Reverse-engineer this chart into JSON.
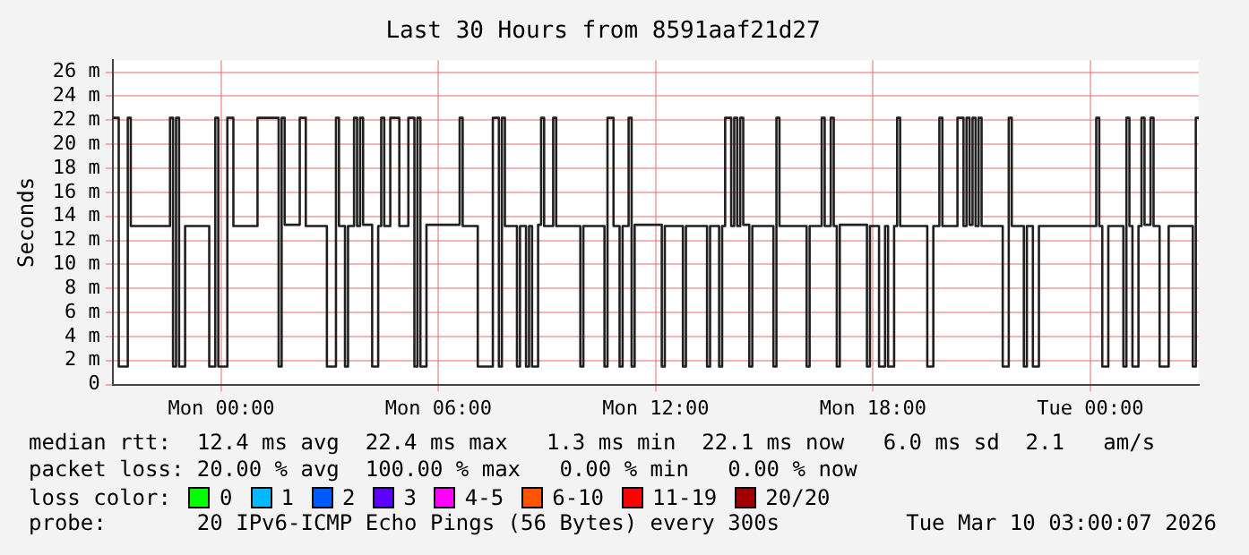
{
  "chart_data": {
    "type": "step",
    "title": "Last 30 Hours from 8591aaf21d27",
    "ylabel": "Seconds",
    "xlim": [
      "2026-03-08T21:00",
      "2026-03-10T03:00"
    ],
    "xticks": [
      {
        "value": "2026-03-09T00:00",
        "label": "Mon 00:00"
      },
      {
        "value": "2026-03-09T06:00",
        "label": "Mon 06:00"
      },
      {
        "value": "2026-03-09T12:00",
        "label": "Mon 12:00"
      },
      {
        "value": "2026-03-09T18:00",
        "label": "Mon 18:00"
      },
      {
        "value": "2026-03-10T00:00",
        "label": "Tue 00:00"
      }
    ],
    "ylim": [
      0,
      27
    ],
    "yticks": [
      0,
      {
        "value": 2,
        "label": "2 m"
      },
      {
        "value": 4,
        "label": "4 m"
      },
      {
        "value": 6,
        "label": "6 m"
      },
      {
        "value": 8,
        "label": "8 m"
      },
      {
        "value": 10,
        "label": "10 m"
      },
      {
        "value": 12,
        "label": "12 m"
      },
      {
        "value": 14,
        "label": "14 m"
      },
      {
        "value": 16,
        "label": "16 m"
      },
      {
        "value": 18,
        "label": "18 m"
      },
      {
        "value": 20,
        "label": "20 m"
      },
      {
        "value": 22,
        "label": "22 m"
      },
      {
        "value": 24,
        "label": "24 m"
      },
      {
        "value": 26,
        "label": "26 m"
      }
    ],
    "grid": true,
    "series": [
      {
        "color": "#202020",
        "x": [
          "2026-03-08T21:00",
          "2026-03-08T21:10",
          "2026-03-08T21:25",
          "2026-03-08T21:30",
          "2026-03-08T22:35",
          "2026-03-08T22:40",
          "2026-03-08T22:45",
          "2026-03-08T22:50",
          "2026-03-08T23:00",
          "2026-03-08T23:40",
          "2026-03-08T23:50",
          "2026-03-08T23:55",
          "2026-03-09T00:10",
          "2026-03-09T00:20",
          "2026-03-09T01:00",
          "2026-03-09T01:35",
          "2026-03-09T01:40",
          "2026-03-09T01:45",
          "2026-03-09T02:10",
          "2026-03-09T02:20",
          "2026-03-09T02:55",
          "2026-03-09T03:10",
          "2026-03-09T03:15",
          "2026-03-09T03:25",
          "2026-03-09T03:30",
          "2026-03-09T03:40",
          "2026-03-09T03:45",
          "2026-03-09T03:50",
          "2026-03-09T03:55",
          "2026-03-09T04:10",
          "2026-03-09T04:20",
          "2026-03-09T04:25",
          "2026-03-09T04:30",
          "2026-03-09T04:40",
          "2026-03-09T04:55",
          "2026-03-09T05:10",
          "2026-03-09T05:20",
          "2026-03-09T05:25",
          "2026-03-09T05:30",
          "2026-03-09T05:40",
          "2026-03-09T06:35",
          "2026-03-09T06:40",
          "2026-03-09T07:05",
          "2026-03-09T07:30",
          "2026-03-09T07:40",
          "2026-03-09T07:45",
          "2026-03-09T07:50",
          "2026-03-09T08:10",
          "2026-03-09T08:15",
          "2026-03-09T08:25",
          "2026-03-09T08:30",
          "2026-03-09T08:35",
          "2026-03-09T08:45",
          "2026-03-09T08:50",
          "2026-03-09T08:55",
          "2026-03-09T09:10",
          "2026-03-09T09:15",
          "2026-03-09T09:55",
          "2026-03-09T10:00",
          "2026-03-09T10:35",
          "2026-03-09T10:40",
          "2026-03-09T10:50",
          "2026-03-09T11:00",
          "2026-03-09T11:05",
          "2026-03-09T11:15",
          "2026-03-09T11:20",
          "2026-03-09T11:25",
          "2026-03-09T12:10",
          "2026-03-09T12:15",
          "2026-03-09T12:45",
          "2026-03-09T12:50",
          "2026-03-09T13:25",
          "2026-03-09T13:30",
          "2026-03-09T13:45",
          "2026-03-09T13:50",
          "2026-03-09T13:55",
          "2026-03-09T14:05",
          "2026-03-09T14:10",
          "2026-03-09T14:15",
          "2026-03-09T14:20",
          "2026-03-09T14:25",
          "2026-03-09T14:35",
          "2026-03-09T14:40",
          "2026-03-09T15:15",
          "2026-03-09T15:20",
          "2026-03-09T15:25",
          "2026-03-09T16:10",
          "2026-03-09T16:15",
          "2026-03-09T16:35",
          "2026-03-09T16:40",
          "2026-03-09T16:50",
          "2026-03-09T16:55",
          "2026-03-09T17:00",
          "2026-03-09T17:05",
          "2026-03-09T17:50",
          "2026-03-09T17:55",
          "2026-03-09T18:10",
          "2026-03-09T18:20",
          "2026-03-09T18:25",
          "2026-03-09T18:35",
          "2026-03-09T18:40",
          "2026-03-09T18:45",
          "2026-03-09T19:30",
          "2026-03-09T19:40",
          "2026-03-09T19:50",
          "2026-03-09T19:55",
          "2026-03-09T20:20",
          "2026-03-09T20:30",
          "2026-03-09T20:35",
          "2026-03-09T20:40",
          "2026-03-09T20:45",
          "2026-03-09T20:50",
          "2026-03-09T20:55",
          "2026-03-09T21:00",
          "2026-03-09T21:35",
          "2026-03-09T21:45",
          "2026-03-09T21:50",
          "2026-03-09T22:10",
          "2026-03-09T22:15",
          "2026-03-09T22:25",
          "2026-03-09T22:35",
          "2026-03-10T00:10",
          "2026-03-10T00:15",
          "2026-03-10T00:20",
          "2026-03-10T00:30",
          "2026-03-10T00:55",
          "2026-03-10T01:00",
          "2026-03-10T01:05",
          "2026-03-10T01:10",
          "2026-03-10T01:20",
          "2026-03-10T01:25",
          "2026-03-10T01:30",
          "2026-03-10T01:40",
          "2026-03-10T01:45",
          "2026-03-10T01:55",
          "2026-03-10T02:10",
          "2026-03-10T02:50",
          "2026-03-10T02:55",
          "2026-03-10T03:00"
        ],
        "values": [
          22.2,
          1.5,
          22.2,
          13.2,
          22.2,
          1.5,
          22.2,
          1.5,
          13.2,
          1.5,
          22.2,
          1.5,
          22.2,
          13.2,
          22.2,
          1.5,
          22.2,
          13.3,
          22.2,
          13.2,
          1.5,
          22.2,
          13.2,
          1.5,
          13.2,
          22.2,
          13.2,
          22.2,
          13.3,
          1.5,
          13.2,
          22.2,
          13.2,
          22.2,
          13.2,
          22.2,
          1.5,
          22.2,
          1.5,
          13.3,
          22.2,
          13.2,
          1.5,
          22.2,
          1.5,
          22.2,
          13.2,
          1.5,
          13.2,
          1.5,
          13.2,
          1.5,
          13.3,
          22.2,
          13.2,
          22.2,
          13.2,
          1.5,
          13.2,
          1.5,
          22.2,
          13.2,
          1.5,
          13.2,
          22.2,
          1.5,
          13.3,
          1.5,
          13.2,
          1.5,
          13.2,
          1.5,
          13.2,
          1.5,
          13.2,
          22.2,
          13.2,
          22.2,
          13.2,
          22.2,
          13.3,
          1.5,
          13.2,
          1.5,
          22.2,
          13.2,
          1.5,
          13.2,
          22.2,
          13.2,
          22.2,
          13.2,
          1.5,
          13.3,
          1.5,
          13.2,
          1.5,
          13.2,
          1.5,
          13.2,
          22.2,
          13.2,
          1.5,
          13.2,
          22.2,
          13.2,
          22.2,
          13.2,
          22.2,
          13.3,
          22.2,
          13.2,
          22.2,
          13.2,
          1.5,
          22.2,
          13.2,
          1.5,
          13.2,
          1.5,
          13.2,
          22.2,
          13.2,
          1.5,
          13.2,
          1.5,
          22.2,
          13.2,
          1.5,
          13.2,
          22.2,
          13.3,
          22.2,
          13.2,
          1.5,
          13.2,
          1.5,
          22.2,
          22.1
        ]
      }
    ],
    "annotations": [
      "median rtt:  12.4 ms avg  22.4 ms max   1.3 ms min  22.1 ms now   6.0 ms sd  2.1   am/s",
      "packet loss: 20.00 % avg  100.00 % max   0.00 % min   0.00 % now",
      "loss color:",
      "0",
      "1",
      "2",
      "3",
      "4-5",
      "6-10",
      "11-19",
      "20/20",
      "probe:       20 IPv6-ICMP Echo Pings (56 Bytes) every 300s",
      "Tue Mar 10 03:00:07 2026"
    ]
  }
}
